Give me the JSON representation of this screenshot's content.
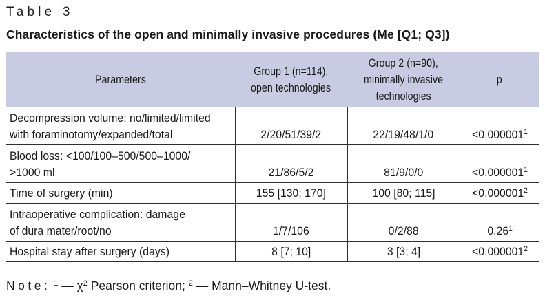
{
  "table_label": "Table 3",
  "caption": "Characteristics of the open and minimally invasive procedures (Me [Q1; Q3])",
  "headers": {
    "parameters": "Parameters",
    "group1_line1": "Group 1 (n=114),",
    "group1_line2": "open technologies",
    "group2_line1": "Group 2 (n=90),",
    "group2_line2": "minimally invasive",
    "group2_line3": "technologies",
    "p": "p"
  },
  "rows": [
    {
      "param_line1": "Decompression volume: no/limited/limited",
      "param_line2": "with foraminotomy/expanded/total",
      "group1": "2/20/51/39/2",
      "group2": "22/19/48/1/0",
      "p": "<0.000001",
      "p_sup": "1"
    },
    {
      "param_line1": "Blood loss: <100/100–500/500–1000/",
      "param_line2": ">1000 ml",
      "group1": "21/86/5/2",
      "group2": "81/9/0/0",
      "p": "<0.000001",
      "p_sup": "1"
    },
    {
      "param_line1": "Time of surgery (min)",
      "group1": "155 [130; 170]",
      "group2": "100 [80; 115]",
      "p": "<0.000001",
      "p_sup": "2"
    },
    {
      "param_line1": "Intraoperative complication: damage",
      "param_line2": "of dura mater/root/no",
      "group1": "1/7/106",
      "group2": "0/2/88",
      "p": "0.26",
      "p_sup": "1"
    },
    {
      "param_line1": "Hospital stay after surgery (days)",
      "group1": "8 [7; 10]",
      "group2": "3 [3; 4]",
      "p": "<0.000001",
      "p_sup": "2"
    }
  ],
  "note": {
    "label": "Note:",
    "sup1": "1",
    "text1": " — χ",
    "chi_sup": "2",
    "text2": " Pearson criterion; ",
    "sup2": "2",
    "text3": " — Mann–Whitney U-test."
  }
}
